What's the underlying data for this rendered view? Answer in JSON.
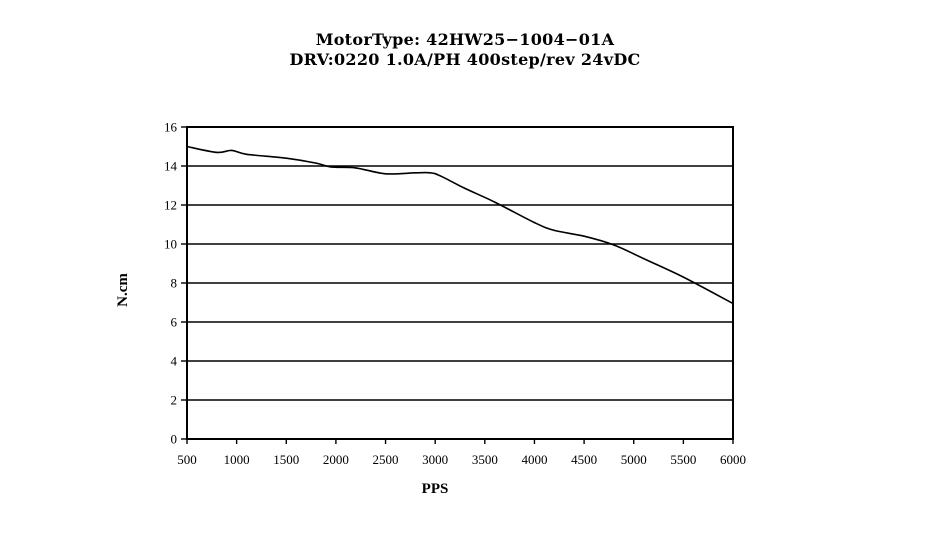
{
  "chart_data": {
    "type": "line",
    "title": "MotorType:  42HW25−1004−01A",
    "subtitle": "DRV:0220 1.0A/PH 400step/rev 24vDC",
    "xlabel": "PPS",
    "ylabel": "N.cm",
    "xlim": [
      500,
      6000
    ],
    "ylim": [
      0,
      16
    ],
    "xticks": [
      "500",
      "1000",
      "1500",
      "2000",
      "2500",
      "3000",
      "3500",
      "4000",
      "4500",
      "5000",
      "5500",
      "6000"
    ],
    "yticks": [
      "0",
      "2",
      "4",
      "6",
      "8",
      "10",
      "12",
      "14",
      "16"
    ],
    "grid": "horizontal",
    "series": [
      {
        "x": [
          500,
          800,
          950,
          1100,
          1500,
          1800,
          1950,
          2200,
          2500,
          2800,
          2950,
          3050,
          3300,
          3600,
          4000,
          4200,
          4500,
          4800,
          5100,
          5500,
          6000
        ],
        "y": [
          15.0,
          14.7,
          14.8,
          14.6,
          14.4,
          14.15,
          13.95,
          13.9,
          13.6,
          13.65,
          13.65,
          13.5,
          12.85,
          12.15,
          11.1,
          10.7,
          10.4,
          9.95,
          9.25,
          8.3,
          6.95
        ]
      }
    ]
  }
}
